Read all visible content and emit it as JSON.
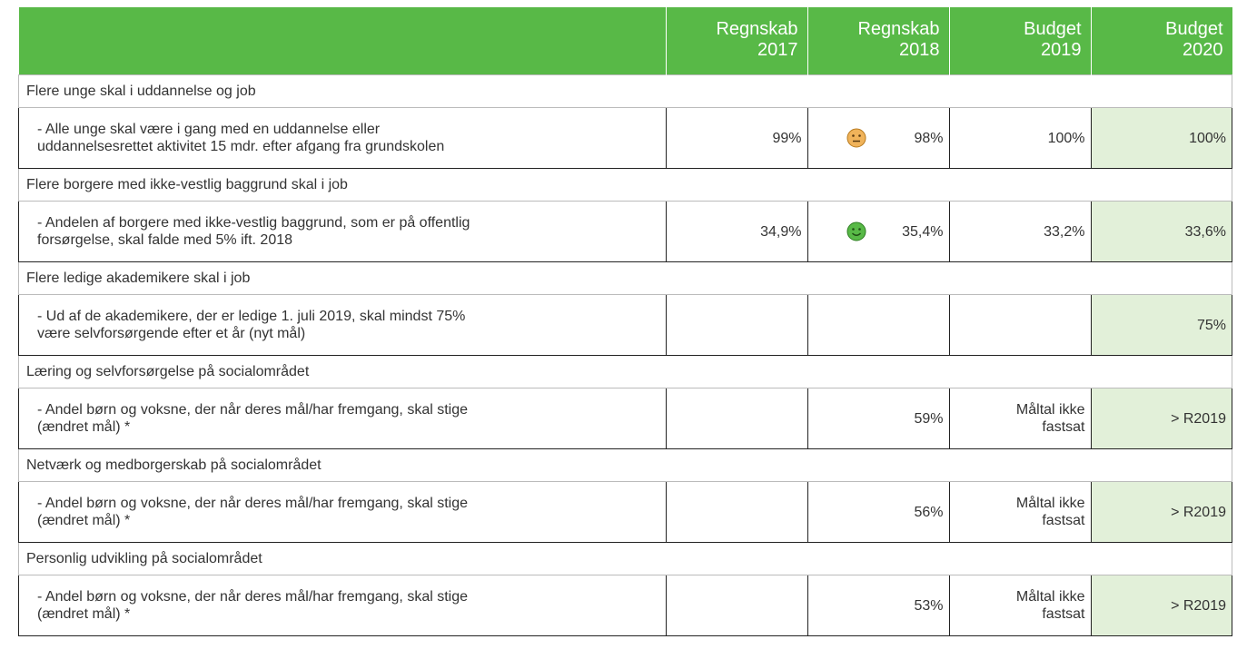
{
  "header": {
    "columns": [
      "Regnskab\n2017",
      "Regnskab\n2018",
      "Budget\n2019",
      "Budget\n2020"
    ]
  },
  "sections": [
    {
      "title": "Flere unge skal i uddannelse og job",
      "label": "- Alle unge skal være i gang med en uddannelse eller\nuddannelsesrettet aktivitet 15 mdr. efter afgang fra grundskolen",
      "values": [
        "99%",
        "98%",
        "100%",
        "100%"
      ]
    },
    {
      "title": "Flere borgere med ikke-vestlig baggrund skal i job",
      "label": "- Andelen af borgere med ikke-vestlig baggrund, som er på offentlig\nforsørgelse, skal falde med 5% ift. 2018",
      "values": [
        "34,9%",
        "35,4%",
        "33,2%",
        "33,6%"
      ]
    },
    {
      "title": "Flere ledige akademikere skal i job",
      "label": "- Ud af de akademikere, der er ledige 1. juli 2019, skal mindst 75%\nvære selvforsørgende efter et år (nyt mål)",
      "values": [
        null,
        null,
        null,
        "75%"
      ]
    },
    {
      "title": "Læring og selvforsørgelse på socialområdet",
      "label": "- Andel børn og voksne, der når deres mål/har fremgang, skal stige\n(ændret mål) *",
      "values": [
        null,
        "59%",
        "Måltal ikke\nfastsat",
        "> R2019"
      ]
    },
    {
      "title": "Netværk og medborgerskab på socialområdet",
      "label": "- Andel børn og voksne, der når deres mål/har fremgang, skal stige\n(ændret mål) *",
      "values": [
        null,
        "56%",
        "Måltal ikke\nfastsat",
        "> R2019"
      ]
    },
    {
      "title": "Personlig udvikling på socialområdet",
      "label": "- Andel børn og voksne, der når deres mål/har fremgang, skal stige\n(ændret mål) *",
      "values": [
        null,
        "53%",
        "Måltal ikke\nfastsat",
        "> R2019"
      ]
    }
  ]
}
